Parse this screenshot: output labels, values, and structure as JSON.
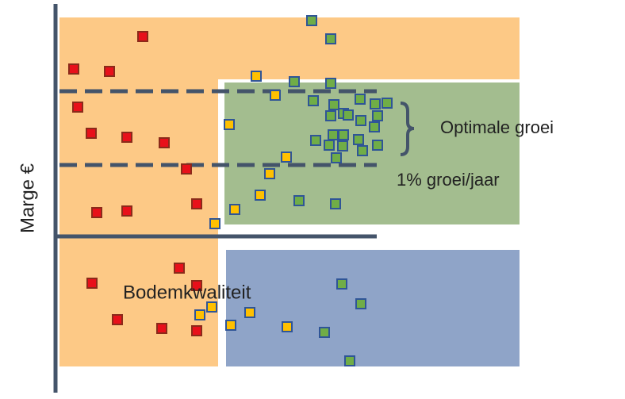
{
  "axis_label": "Marge €",
  "labels": {
    "optimal": "Optimale groei",
    "growth": "1% groei/jaar",
    "soil": "Bodemkwaliteit"
  }
}
